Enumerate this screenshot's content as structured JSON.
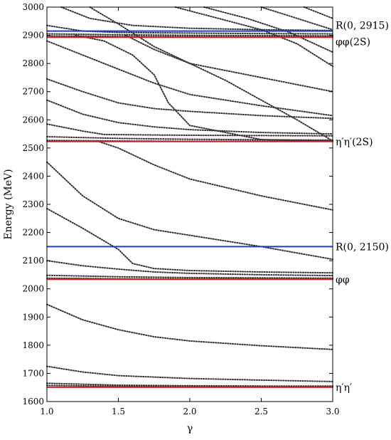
{
  "chart_data": {
    "type": "line",
    "xlabel": "γ",
    "ylabel": "Energy (MeV)",
    "xlim": [
      1.0,
      3.0
    ],
    "ylim": [
      1600,
      3000
    ],
    "x_ticks": [
      "1.0",
      "1.5",
      "2.0",
      "2.5",
      "3.0"
    ],
    "y_ticks": [
      "1600",
      "1700",
      "1800",
      "1900",
      "2000",
      "2100",
      "2200",
      "2300",
      "2400",
      "2500",
      "2600",
      "2700",
      "2800",
      "2900",
      "3000"
    ],
    "grid": false,
    "horizontal_lines": [
      {
        "label": "R(0, 2915)",
        "y": 2915,
        "color": "#1f3fbf"
      },
      {
        "label": "φφ(2S)",
        "y": 2893,
        "color": "#d42020"
      },
      {
        "label": "η′η′(2S)",
        "y": 2523,
        "color": "#d42020"
      },
      {
        "label": "R(0, 2150)",
        "y": 2150,
        "color": "#1f3fbf"
      },
      {
        "label": "φφ",
        "y": 2034,
        "color": "#d42020"
      },
      {
        "label": "η′η′",
        "y": 1651,
        "color": "#d42020"
      }
    ],
    "dotted_series_color": "#333333",
    "series": [
      {
        "x": [
          1.0,
          1.5,
          2.0,
          2.5,
          3.0
        ],
        "y": [
          1657,
          1654,
          1653,
          1652,
          1652
        ]
      },
      {
        "x": [
          1.0,
          1.5,
          2.0,
          2.5,
          3.0
        ],
        "y": [
          1665,
          1658,
          1656,
          1655,
          1655
        ]
      },
      {
        "x": [
          1.0,
          1.25,
          1.5,
          2.0,
          2.5,
          3.0
        ],
        "y": [
          1725,
          1705,
          1692,
          1682,
          1676,
          1671
        ]
      },
      {
        "x": [
          1.0,
          1.25,
          1.5,
          1.75,
          2.0,
          2.5,
          3.0
        ],
        "y": [
          1945,
          1890,
          1855,
          1830,
          1815,
          1798,
          1785
        ]
      },
      {
        "x": [
          1.0,
          1.5,
          2.0,
          2.5,
          3.0
        ],
        "y": [
          2038,
          2036,
          2035,
          2035,
          2035
        ]
      },
      {
        "x": [
          1.0,
          1.5,
          2.0,
          2.5,
          3.0
        ],
        "y": [
          2048,
          2043,
          2040,
          2039,
          2038
        ]
      },
      {
        "x": [
          1.0,
          1.25,
          1.5,
          1.75,
          2.0,
          2.5,
          3.0
        ],
        "y": [
          2100,
          2082,
          2070,
          2060,
          2055,
          2050,
          2047
        ]
      },
      {
        "x": [
          1.0,
          1.25,
          1.5,
          1.6,
          1.75,
          2.0,
          2.5,
          3.0
        ],
        "y": [
          2285,
          2215,
          2140,
          2090,
          2072,
          2065,
          2060,
          2057
        ]
      },
      {
        "x": [
          1.0,
          1.25,
          1.5,
          1.75,
          2.0,
          2.5,
          3.0
        ],
        "y": [
          2450,
          2330,
          2250,
          2210,
          2190,
          2150,
          2105
        ]
      },
      {
        "x": [
          1.0,
          1.5,
          2.0,
          2.5,
          3.0
        ],
        "y": [
          2527,
          2525,
          2524,
          2524,
          2524
        ]
      },
      {
        "x": [
          1.0,
          1.5,
          2.0,
          2.5,
          3.0
        ],
        "y": [
          2540,
          2534,
          2531,
          2529,
          2528
        ]
      },
      {
        "x": [
          1.0,
          1.25,
          1.4,
          1.6,
          1.8,
          2.0,
          2.5,
          3.0
        ],
        "y": [
          2585,
          2560,
          2548,
          2547,
          2546,
          2545,
          2544,
          2543
        ]
      },
      {
        "x": [
          1.35,
          1.5,
          1.75,
          2.0,
          2.5,
          3.0
        ],
        "y": [
          2525,
          2500,
          2440,
          2390,
          2330,
          2280
        ]
      },
      {
        "x": [
          1.0,
          1.25,
          1.5,
          1.75,
          2.0,
          2.5,
          3.0
        ],
        "y": [
          2670,
          2620,
          2590,
          2575,
          2565,
          2555,
          2550
        ]
      },
      {
        "x": [
          1.0,
          1.25,
          1.5,
          1.75,
          2.0,
          2.5,
          3.0
        ],
        "y": [
          2745,
          2700,
          2660,
          2640,
          2630,
          2615,
          2605
        ]
      },
      {
        "x": [
          1.0,
          1.25,
          1.5,
          1.75,
          2.0,
          2.5,
          3.0
        ],
        "y": [
          2880,
          2830,
          2780,
          2730,
          2690,
          2650,
          2615
        ]
      },
      {
        "x": [
          1.2,
          1.4,
          1.6,
          1.75,
          1.85,
          2.0,
          2.5,
          3.0
        ],
        "y": [
          2900,
          2880,
          2830,
          2760,
          2660,
          2580,
          2530,
          2525
        ]
      },
      {
        "x": [
          1.55,
          1.75,
          2.0,
          2.25,
          2.5,
          2.75,
          3.0
        ],
        "y": [
          2900,
          2850,
          2800,
          2740,
          2670,
          2600,
          2525
        ]
      },
      {
        "x": [
          1.3,
          1.5,
          1.75,
          2.0,
          2.5,
          3.0
        ],
        "y": [
          3000,
          2940,
          2860,
          2800,
          2750,
          2700
        ]
      },
      {
        "x": [
          1.0,
          1.5,
          2.0,
          2.5,
          3.0
        ],
        "y": [
          2898,
          2896,
          2895,
          2894,
          2894
        ]
      },
      {
        "x": [
          1.0,
          1.5,
          2.0,
          2.5,
          3.0
        ],
        "y": [
          2905,
          2902,
          2900,
          2899,
          2898
        ]
      },
      {
        "x": [
          1.0,
          1.25,
          1.5,
          2.0,
          2.5,
          3.0
        ],
        "y": [
          2935,
          2915,
          2910,
          2908,
          2906,
          2905
        ]
      },
      {
        "x": [
          1.1,
          1.3,
          1.6,
          2.0,
          2.5,
          3.0
        ],
        "y": [
          3000,
          2960,
          2935,
          2925,
          2920,
          2917
        ]
      },
      {
        "x": [
          1.9,
          2.2,
          2.5,
          2.75,
          3.0
        ],
        "y": [
          3000,
          2960,
          2920,
          2870,
          2790
        ]
      },
      {
        "x": [
          2.1,
          2.4,
          2.7,
          3.0
        ],
        "y": [
          3000,
          2960,
          2910,
          2840
        ]
      },
      {
        "x": [
          2.5,
          2.75,
          3.0
        ],
        "y": [
          3000,
          2960,
          2920
        ]
      },
      {
        "x": [
          2.8,
          3.0
        ],
        "y": [
          3000,
          2960
        ]
      }
    ]
  }
}
